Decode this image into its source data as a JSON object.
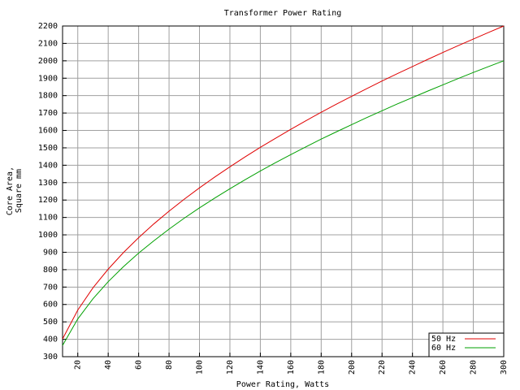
{
  "chart_data": {
    "type": "line",
    "title": "Transformer Power Rating",
    "xlabel": "Power Rating, Watts",
    "ylabel": [
      "Core Area,",
      "Square mm"
    ],
    "x": [
      10,
      20,
      30,
      40,
      50,
      60,
      70,
      80,
      90,
      100,
      110,
      120,
      130,
      140,
      150,
      160,
      170,
      180,
      190,
      200,
      210,
      220,
      230,
      240,
      250,
      260,
      270,
      280,
      290,
      300
    ],
    "series": [
      {
        "name": "50 Hz",
        "color": "#e00000",
        "values": [
          402,
          568,
          696,
          803,
          898,
          984,
          1063,
          1136,
          1205,
          1270,
          1332,
          1391,
          1448,
          1503,
          1555,
          1606,
          1656,
          1704,
          1751,
          1796,
          1840,
          1884,
          1926,
          1967,
          2008,
          2048,
          2087,
          2125,
          2163,
          2200
        ]
      },
      {
        "name": "60 Hz",
        "color": "#00a000",
        "values": [
          365,
          517,
          633,
          731,
          817,
          895,
          966,
          1033,
          1096,
          1155,
          1211,
          1265,
          1317,
          1367,
          1415,
          1461,
          1506,
          1550,
          1592,
          1633,
          1674,
          1713,
          1752,
          1789,
          1826,
          1862,
          1898,
          1933,
          1967,
          2000
        ]
      }
    ],
    "xlim": [
      10,
      300
    ],
    "ylim": [
      300,
      2200
    ],
    "xticks": [
      20,
      40,
      60,
      80,
      100,
      120,
      140,
      160,
      180,
      200,
      220,
      240,
      260,
      280,
      300
    ],
    "yticks": [
      300,
      400,
      500,
      600,
      700,
      800,
      900,
      1000,
      1100,
      1200,
      1300,
      1400,
      1500,
      1600,
      1700,
      1800,
      1900,
      2000,
      2100,
      2200
    ],
    "grid": true,
    "legend": "lower right"
  }
}
